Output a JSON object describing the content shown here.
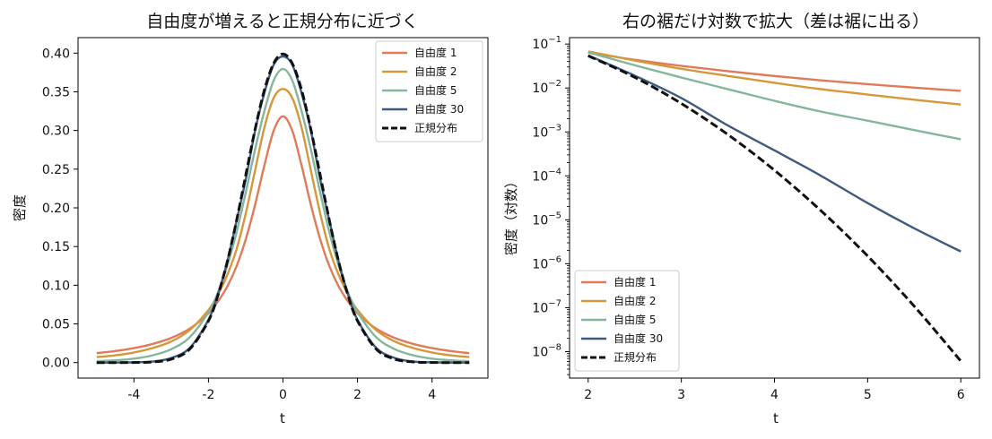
{
  "chart_data": [
    {
      "type": "line",
      "title": "自由度が増えると正規分布に近づく",
      "xlabel": "t",
      "ylabel": "密度",
      "xlim": [
        -5.5,
        5.5
      ],
      "ylim": [
        -0.02,
        0.42
      ],
      "xscale": "linear",
      "yscale": "linear",
      "xticks": [
        -4,
        -2,
        0,
        2,
        4
      ],
      "xtick_labels": [
        "-4",
        "-2",
        "0",
        "2",
        "4"
      ],
      "yticks": [
        0.0,
        0.05,
        0.1,
        0.15,
        0.2,
        0.25,
        0.3,
        0.35,
        0.4
      ],
      "ytick_labels": [
        "0.00",
        "0.05",
        "0.10",
        "0.15",
        "0.20",
        "0.25",
        "0.30",
        "0.35",
        "0.40"
      ],
      "grid": false,
      "legend_position": "top-right",
      "x": [
        -5,
        -4.5,
        -4,
        -3.5,
        -3,
        -2.5,
        -2,
        -1.75,
        -1.5,
        -1.25,
        -1,
        -0.75,
        -0.5,
        -0.25,
        0,
        0.25,
        0.5,
        0.75,
        1,
        1.25,
        1.5,
        1.75,
        2,
        2.5,
        3,
        3.5,
        4,
        4.5,
        5
      ],
      "series": [
        {
          "name": "自由度 1",
          "color": "#e07b5a",
          "dash": false,
          "values": [
            0.0122,
            0.0149,
            0.0187,
            0.0241,
            0.0318,
            0.0439,
            0.0637,
            0.0787,
            0.0979,
            0.1241,
            0.1592,
            0.2037,
            0.2546,
            0.2996,
            0.3183,
            0.2996,
            0.2546,
            0.2037,
            0.1592,
            0.1241,
            0.0979,
            0.0787,
            0.0637,
            0.0439,
            0.0318,
            0.0241,
            0.0187,
            0.0149,
            0.0122
          ]
        },
        {
          "name": "自由度 2",
          "color": "#d6973a",
          "dash": false,
          "values": [
            0.0071,
            0.0094,
            0.0131,
            0.0188,
            0.0273,
            0.0422,
            0.068,
            0.0876,
            0.1128,
            0.1458,
            0.1925,
            0.248,
            0.3036,
            0.342,
            0.3536,
            0.342,
            0.3036,
            0.248,
            0.1925,
            0.1458,
            0.1128,
            0.0876,
            0.068,
            0.0422,
            0.0273,
            0.0188,
            0.0131,
            0.0094,
            0.0071
          ]
        },
        {
          "name": "自由度 5",
          "color": "#85b59c",
          "dash": false,
          "values": [
            0.0018,
            0.0029,
            0.0051,
            0.0094,
            0.0173,
            0.0329,
            0.0651,
            0.09,
            0.1245,
            0.1675,
            0.2197,
            0.2752,
            0.3249,
            0.3646,
            0.3796,
            0.3646,
            0.3249,
            0.2752,
            0.2197,
            0.1675,
            0.1245,
            0.09,
            0.0651,
            0.0329,
            0.0173,
            0.0094,
            0.0051,
            0.0029,
            0.0018
          ]
        },
        {
          "name": "自由度 30",
          "color": "#3d5a80",
          "dash": false,
          "values": [
            2e-05,
            0.0001,
            0.0004,
            0.0014,
            0.0059,
            0.0191,
            0.0552,
            0.0876,
            0.1296,
            0.1823,
            0.2366,
            0.2993,
            0.3485,
            0.3849,
            0.3956,
            0.3849,
            0.3485,
            0.2993,
            0.2366,
            0.1823,
            0.1296,
            0.0876,
            0.0552,
            0.0191,
            0.0059,
            0.0014,
            0.0004,
            0.0001,
            2e-05
          ]
        },
        {
          "name": "正規分布",
          "color": "#111111",
          "dash": true,
          "values": [
            1.5e-06,
            1.6e-05,
            0.000134,
            0.00087,
            0.00443,
            0.0175,
            0.054,
            0.0863,
            0.1295,
            0.1826,
            0.242,
            0.3011,
            0.3521,
            0.3867,
            0.3989,
            0.3867,
            0.3521,
            0.3011,
            0.242,
            0.1826,
            0.1295,
            0.0863,
            0.054,
            0.0175,
            0.00443,
            0.00087,
            0.000134,
            1.6e-05,
            1.5e-06
          ]
        }
      ]
    },
    {
      "type": "line",
      "title": "右の裾だけ対数で拡大（差は裾に出る）",
      "xlabel": "t",
      "ylabel": "密度（対数）",
      "xlim": [
        1.8,
        6.2
      ],
      "ylim": [
        2.5e-09,
        0.14
      ],
      "xscale": "linear",
      "yscale": "log",
      "xticks": [
        2,
        3,
        4,
        5,
        6
      ],
      "xtick_labels": [
        "2",
        "3",
        "4",
        "5",
        "6"
      ],
      "ytick_exponents": [
        -1,
        -2,
        -3,
        -4,
        -5,
        -6,
        -7,
        -8
      ],
      "ytick_base": "10",
      "grid": false,
      "legend_position": "bottom-left",
      "x": [
        2,
        2.5,
        3,
        3.5,
        4,
        4.5,
        5,
        5.5,
        6
      ],
      "series": [
        {
          "name": "自由度 1",
          "color": "#e07b5a",
          "dash": false,
          "values": [
            0.0637,
            0.0439,
            0.0318,
            0.0241,
            0.0187,
            0.0149,
            0.0122,
            0.0102,
            0.0086
          ]
        },
        {
          "name": "自由度 2",
          "color": "#d6973a",
          "dash": false,
          "values": [
            0.068,
            0.0422,
            0.0273,
            0.0188,
            0.0131,
            0.0094,
            0.0071,
            0.0054,
            0.0042
          ]
        },
        {
          "name": "自由度 5",
          "color": "#85b59c",
          "dash": false,
          "values": [
            0.0651,
            0.0329,
            0.0173,
            0.0094,
            0.0051,
            0.0029,
            0.0018,
            0.0011,
            0.00068
          ]
        },
        {
          "name": "自由度 30",
          "color": "#3d5a80",
          "dash": false,
          "values": [
            0.0552,
            0.0191,
            0.0059,
            0.0014,
            0.00038,
            0.0001,
            2.4e-05,
            6.4e-06,
            1.9e-06
          ]
        },
        {
          "name": "正規分布",
          "color": "#111111",
          "dash": true,
          "values": [
            0.054,
            0.0175,
            0.00443,
            0.00087,
            0.000134,
            1.6e-05,
            1.5e-06,
            1.08e-07,
            6.1e-09
          ]
        }
      ]
    }
  ]
}
